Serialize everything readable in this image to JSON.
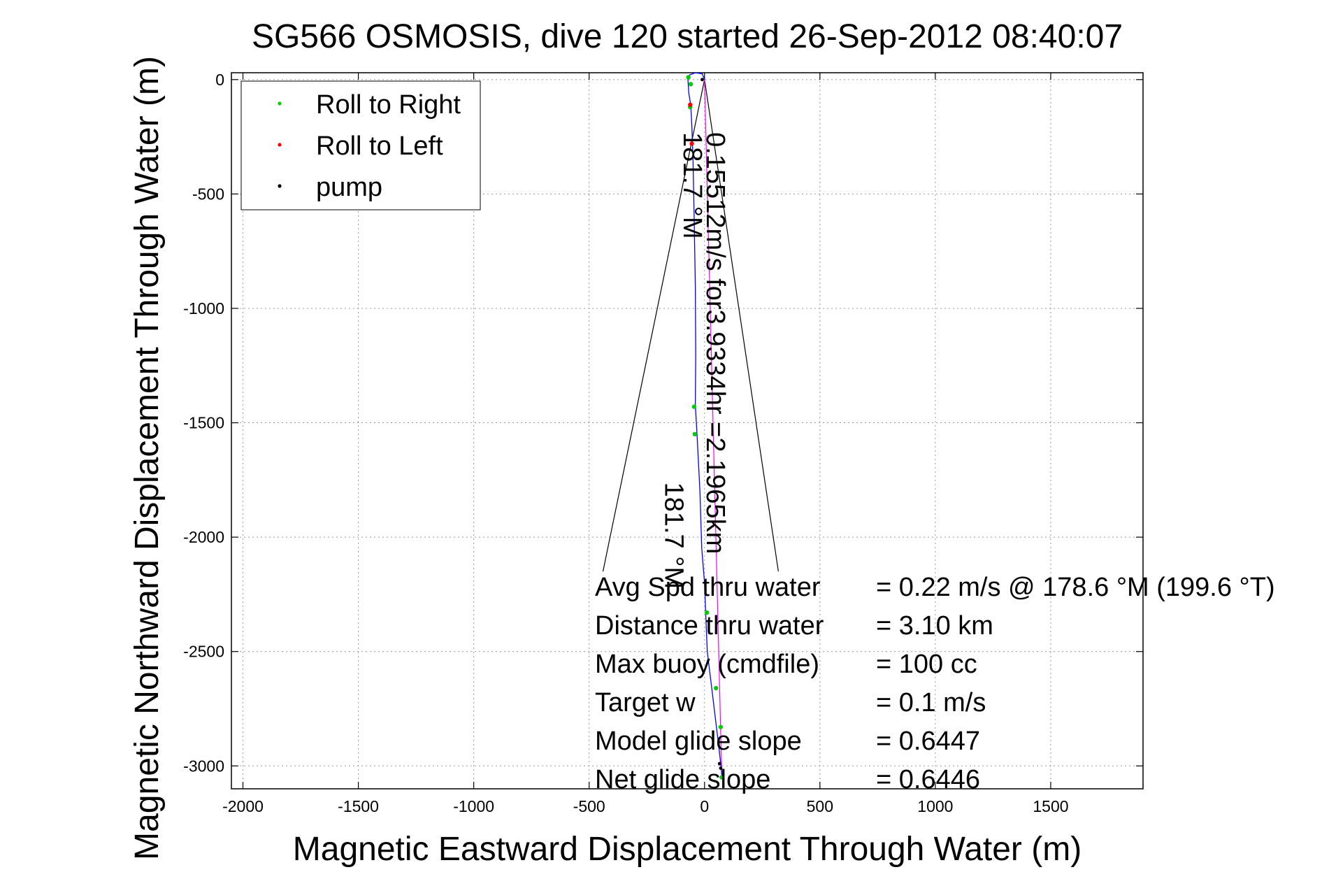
{
  "chart_data": {
    "type": "scatter",
    "title": "SG566 OSMOSIS, dive 120 started 26-Sep-2012 08:40:07",
    "xlabel": "Magnetic Eastward Displacement Through Water (m)",
    "ylabel": "Magnetic Northward Displacement Through Water (m)",
    "xlim": [
      -2050,
      1900
    ],
    "ylim": [
      -3100,
      30
    ],
    "xticks": [
      -2000,
      -1500,
      -1000,
      -500,
      0,
      500,
      1000,
      1500
    ],
    "xtick_labels": [
      "-2000",
      "-1500",
      "-1000",
      "-500",
      "0",
      "500",
      "1000",
      "1500"
    ],
    "yticks": [
      0,
      -500,
      -1000,
      -1500,
      -2000,
      -2500,
      -3000
    ],
    "ytick_labels": [
      "0",
      "-500",
      "-1000",
      "-1500",
      "-2000",
      "-2500",
      "-3000"
    ],
    "grid": true,
    "legend_position": "top-left",
    "legend": [
      {
        "label": "Roll to Right",
        "color": "#00cc00"
      },
      {
        "label": "Roll to Left",
        "color": "#ff0000"
      },
      {
        "label": "pump",
        "color": "#000000"
      }
    ],
    "track_color": "#0000ff",
    "heading_line_color": "#ff00ff",
    "track": [
      [
        0,
        0
      ],
      [
        -10,
        25
      ],
      [
        -40,
        30
      ],
      [
        -65,
        20
      ],
      [
        -72,
        0
      ],
      [
        -68,
        -60
      ],
      [
        -60,
        -110
      ],
      [
        -55,
        -200
      ],
      [
        -50,
        -350
      ],
      [
        -45,
        -600
      ],
      [
        -40,
        -900
      ],
      [
        -38,
        -1200
      ],
      [
        -40,
        -1420
      ],
      [
        -32,
        -1560
      ],
      [
        -20,
        -1800
      ],
      [
        -12,
        -2050
      ],
      [
        0,
        -2200
      ],
      [
        5,
        -2330
      ],
      [
        12,
        -2500
      ],
      [
        30,
        -2650
      ],
      [
        48,
        -2800
      ],
      [
        60,
        -2900
      ],
      [
        70,
        -2990
      ],
      [
        75,
        -3040
      ]
    ],
    "roll_right": [
      [
        -70,
        10
      ],
      [
        -60,
        -20
      ],
      [
        -62,
        -120
      ],
      [
        -45,
        -1430
      ],
      [
        -42,
        -1550
      ],
      [
        10,
        -2330
      ],
      [
        50,
        -2660
      ],
      [
        70,
        -2830
      ],
      [
        75,
        -3050
      ]
    ],
    "roll_left": [
      [
        -62,
        -110
      ],
      [
        -55,
        -280
      ]
    ],
    "pump": [
      [
        -10,
        0
      ],
      [
        65,
        -2990
      ],
      [
        70,
        -3010
      ]
    ],
    "heading_line": [
      [
        0,
        0
      ],
      [
        75,
        -3050
      ]
    ],
    "wedge": {
      "apex": [
        0,
        0
      ],
      "left_end": [
        -440,
        -2150
      ],
      "right_end": [
        320,
        -2150
      ]
    },
    "rotated_labels": [
      {
        "text": "0.15512m/s for3.9334hr =2.1965km",
        "at": [
          10,
          -230
        ],
        "rotation": 90
      },
      {
        "text": "181.7 °M",
        "at": [
          -90,
          -230
        ],
        "rotation": 90
      },
      {
        "text": "181.7 °M",
        "at": [
          -170,
          -1760
        ],
        "rotation": 90
      }
    ],
    "annotations": [
      {
        "label": "Avg Spd thru water",
        "value": "=  0.22 m/s @ 178.6 °M (199.6 °T)"
      },
      {
        "label": "Distance thru water",
        "value": "=  3.10 km"
      },
      {
        "label": "Max buoy (cmdfile)",
        "value": "= 100 cc"
      },
      {
        "label": "Target w",
        "value": "= 0.1 m/s"
      },
      {
        "label": "Model glide slope",
        "value": "= 0.6447"
      },
      {
        "label": "Net glide slope",
        "value": "= 0.6446"
      }
    ]
  }
}
